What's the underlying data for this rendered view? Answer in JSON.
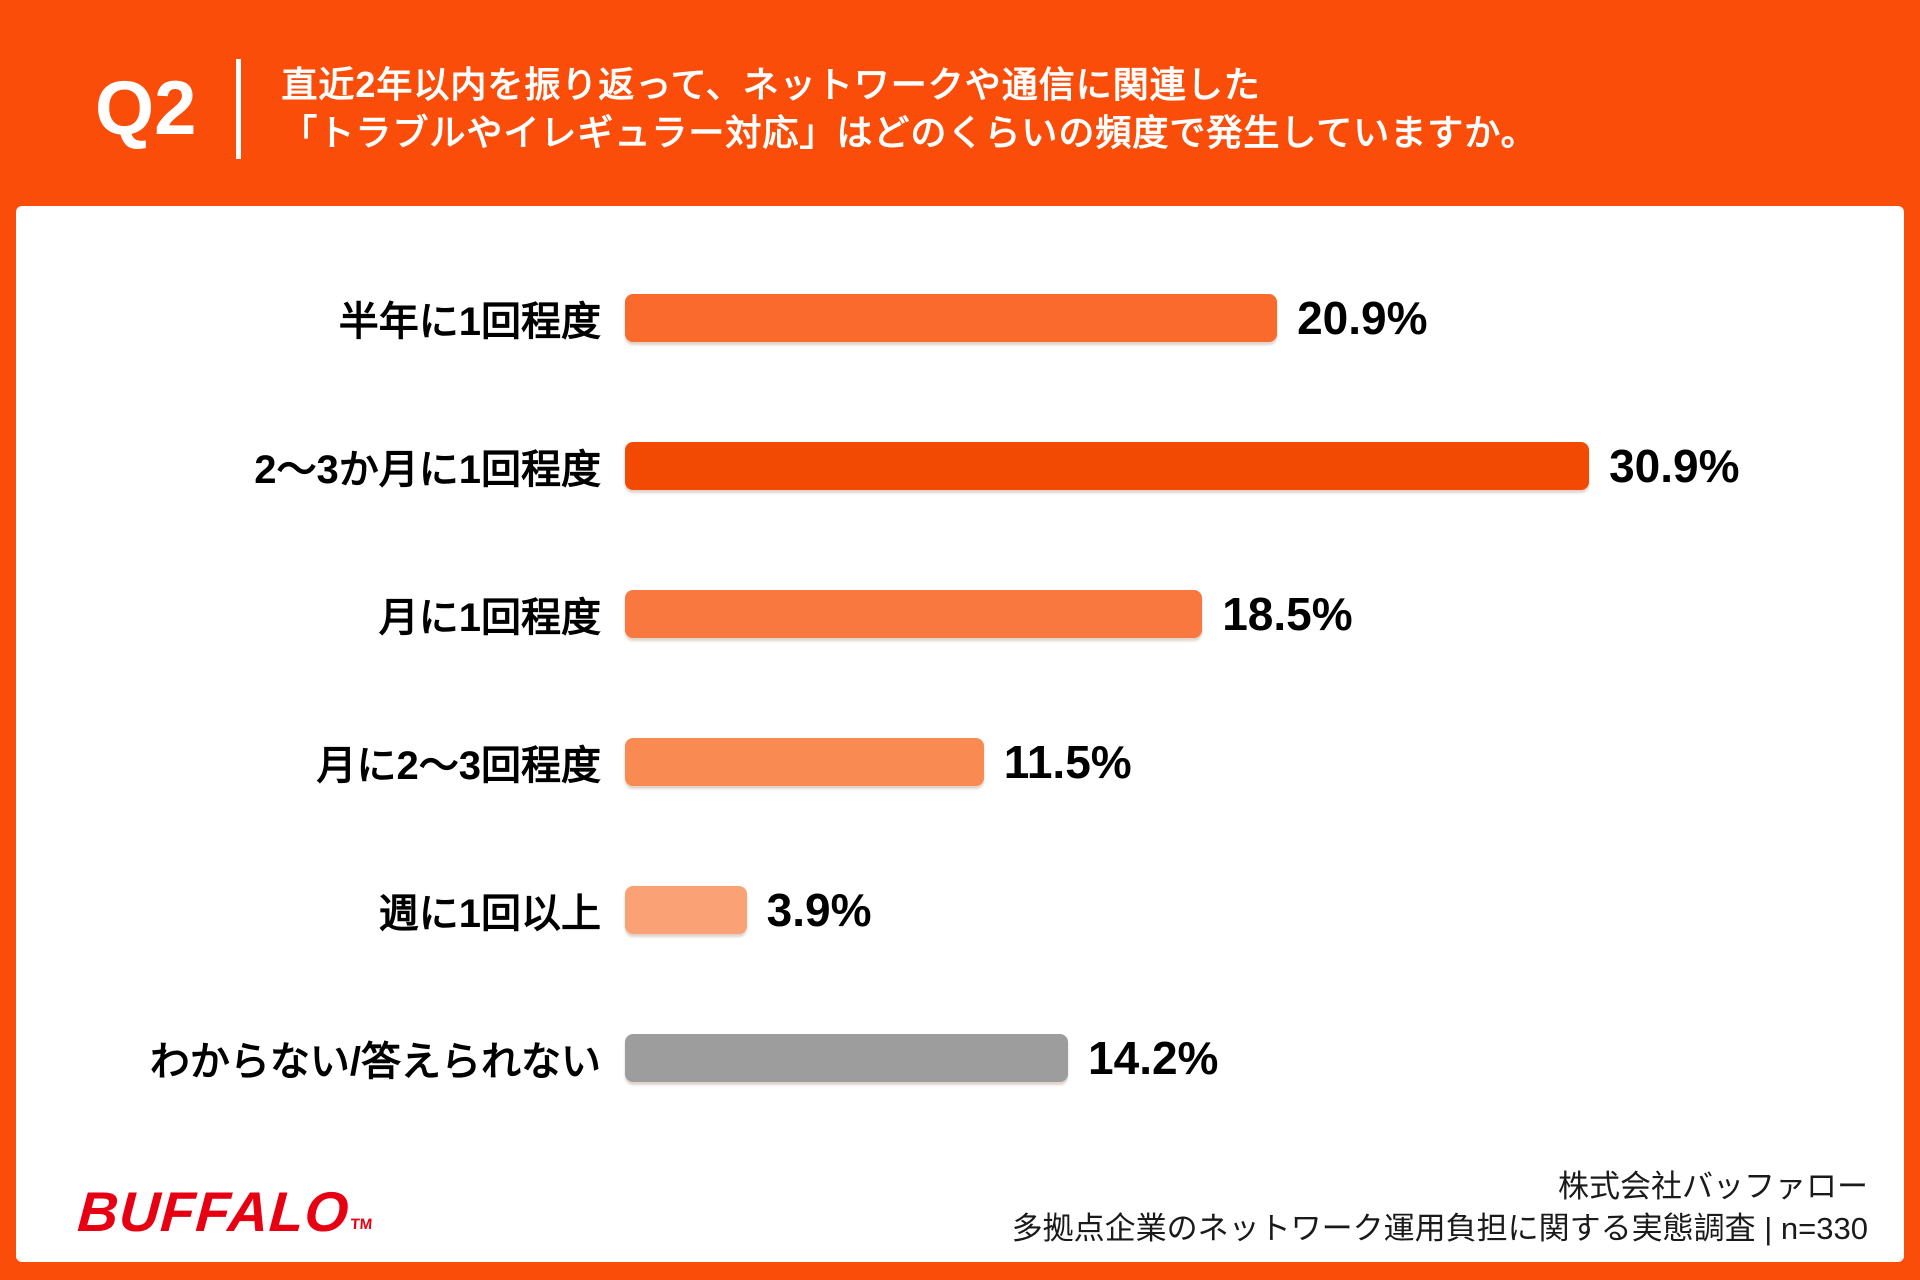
{
  "header": {
    "question_number": "Q2",
    "question_line1": "直近2年以内を振り返って、ネットワークや通信に関連した",
    "question_line2": "「トラブルやイレギュラー対応」はどのくらいの頻度で発生していますか。"
  },
  "chart_data": {
    "type": "bar",
    "orientation": "horizontal",
    "title": "",
    "xlabel": "",
    "ylabel": "",
    "xlim": [
      0,
      33
    ],
    "grid": false,
    "legend": "none",
    "categories": [
      "半年に1回程度",
      "2〜3か月に1回程度",
      "月に1回程度",
      "月に2〜3回程度",
      "週に1回以上",
      "わからない/答えられない"
    ],
    "values": [
      20.9,
      30.9,
      18.5,
      11.5,
      3.9,
      14.2
    ],
    "value_labels": [
      "20.9%",
      "30.9%",
      "18.5%",
      "11.5%",
      "3.9%",
      "14.2%"
    ],
    "bar_colors": [
      "#F96A2C",
      "#F24A02",
      "#F87840",
      "#F98B52",
      "#FAA276",
      "#9D9D9D"
    ]
  },
  "footer": {
    "logo_text": "BUFFALO",
    "logo_tm": "TM",
    "source_line1": "株式会社バッファロー",
    "source_line2": "多拠点企業のネットワーク運用負担に関する実態調査 | n=330"
  },
  "colors": {
    "background": "#FB4D0A",
    "panel": "#FFFFFF",
    "logo_red": "#E60012",
    "text_black": "#000000"
  }
}
